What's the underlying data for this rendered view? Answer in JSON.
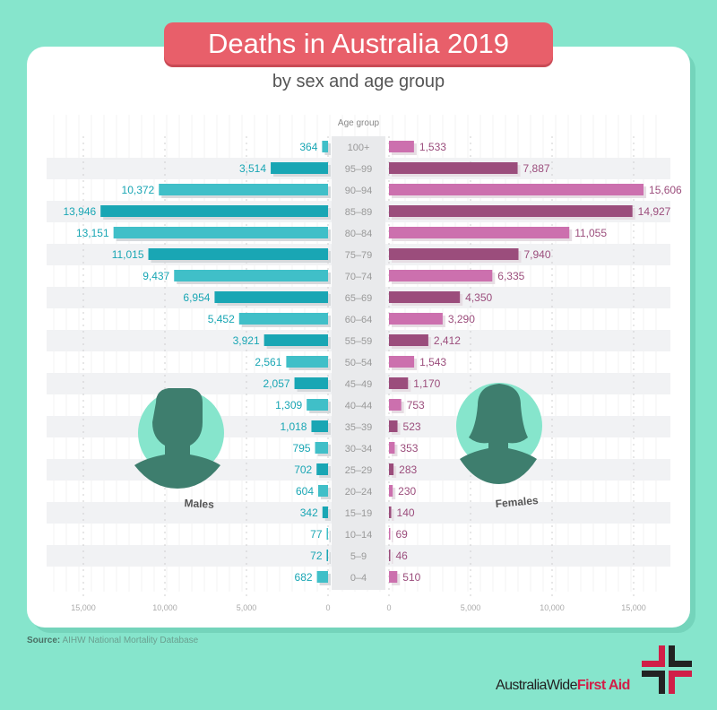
{
  "title": "Deaths in Australia 2019",
  "subtitle": "by sex and age group",
  "source_label": "Source:",
  "source_text": "AIHW National Mortality Database",
  "logo": {
    "part1": "AustraliaWide",
    "part2": "First Aid"
  },
  "colors": {
    "background": "#86e5cc",
    "title": "#e85f6a",
    "male_light": "#40bfc8",
    "male_dark": "#19a6b4",
    "female_light": "#cc70ae",
    "female_dark": "#9b4d7c",
    "silhouette": "#3e7e6e"
  },
  "chart_data": {
    "type": "bar",
    "orientation": "horizontal population pyramid",
    "category_header": "Age group",
    "categories": [
      "100+",
      "95–99",
      "90–94",
      "85–89",
      "80–84",
      "75–79",
      "70–74",
      "65–69",
      "60–64",
      "55–59",
      "50–54",
      "45–49",
      "40–44",
      "35–39",
      "30–34",
      "25–29",
      "20–24",
      "15–19",
      "10–14",
      "5–9",
      "0–4"
    ],
    "series": [
      {
        "name": "Males",
        "values": [
          364,
          3514,
          10372,
          13946,
          13151,
          11015,
          9437,
          6954,
          5452,
          3921,
          2561,
          2057,
          1309,
          1018,
          795,
          702,
          604,
          342,
          77,
          72,
          682
        ],
        "labels": [
          "364",
          "3,514",
          "10,372",
          "13,946",
          "13,151",
          "11,015",
          "9,437",
          "6,954",
          "5,452",
          "3,921",
          "2,561",
          "2,057",
          "1,309",
          "1,018",
          "795",
          "702",
          "604",
          "342",
          "77",
          "72",
          "682"
        ]
      },
      {
        "name": "Females",
        "values": [
          1533,
          7887,
          15606,
          14927,
          11055,
          7940,
          6335,
          4350,
          3290,
          2412,
          1543,
          1170,
          753,
          523,
          353,
          283,
          230,
          140,
          69,
          46,
          510
        ],
        "labels": [
          "1,533",
          "7,887",
          "15,606",
          "14,927",
          "11,055",
          "7,940",
          "6,335",
          "4,350",
          "3,290",
          "2,412",
          "1,543",
          "1,170",
          "753",
          "523",
          "353",
          "283",
          "230",
          "140",
          "69",
          "46",
          "510"
        ]
      }
    ],
    "xlim": [
      0,
      15000
    ],
    "ticks": [
      15000,
      10000,
      5000,
      0
    ],
    "tick_labels": [
      "15,000",
      "10,000",
      "5,000",
      "0"
    ],
    "grid": true
  }
}
